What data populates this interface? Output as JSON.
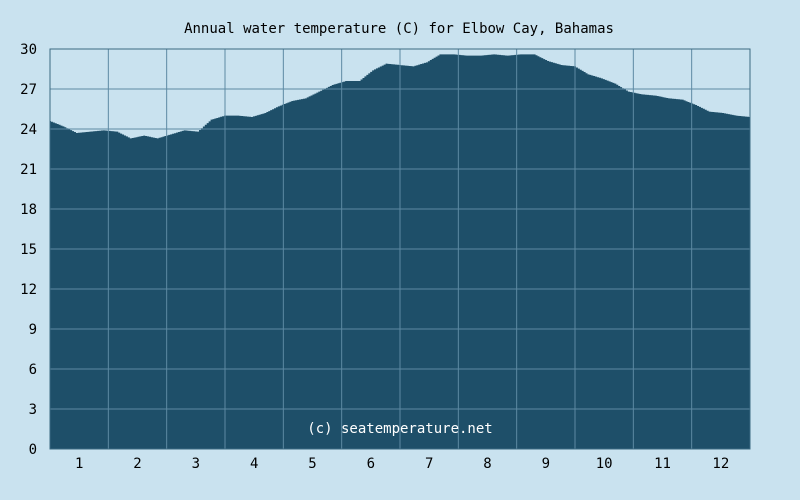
{
  "chart_data": {
    "type": "area",
    "title": "Annual water temperature (C) for Elbow Cay, Bahamas",
    "xlabel": "",
    "ylabel": "",
    "watermark": "(c) seatemperature.net",
    "x_ticks": [
      "1",
      "2",
      "3",
      "4",
      "5",
      "6",
      "7",
      "8",
      "9",
      "10",
      "11",
      "12"
    ],
    "y_ticks": [
      "0",
      "3",
      "6",
      "9",
      "12",
      "15",
      "18",
      "21",
      "24",
      "27",
      "30"
    ],
    "ylim": [
      0,
      30
    ],
    "xlim_days": [
      1,
      365
    ],
    "grid": true,
    "colors": {
      "background": "#c9e2ef",
      "area_fill": "#1e4f69",
      "grid": "#5d8aa3",
      "axis": "#3b6a82"
    },
    "series": [
      {
        "values_day": [
          1,
          8,
          15,
          22,
          29,
          36,
          43,
          50,
          57,
          64,
          71,
          78,
          85,
          92,
          99,
          106,
          113,
          120,
          127,
          134,
          141,
          148,
          155,
          162,
          169,
          176,
          183,
          190,
          197,
          204,
          211,
          218,
          225,
          232,
          239,
          246,
          253,
          260,
          267,
          274,
          281,
          288,
          295,
          302,
          309,
          316,
          323,
          330,
          337,
          344,
          351,
          358,
          365
        ],
        "values": [
          24.6,
          24.2,
          23.7,
          23.8,
          23.9,
          23.8,
          23.3,
          23.5,
          23.3,
          23.6,
          23.9,
          23.8,
          24.7,
          25.0,
          25.0,
          24.9,
          25.2,
          25.7,
          26.1,
          26.3,
          26.8,
          27.3,
          27.6,
          27.6,
          28.4,
          28.9,
          28.8,
          28.7,
          29.0,
          29.6,
          29.6,
          29.5,
          29.5,
          29.6,
          29.5,
          29.6,
          29.6,
          29.1,
          28.8,
          28.7,
          28.1,
          27.8,
          27.4,
          26.8,
          26.6,
          26.5,
          26.3,
          26.2,
          25.8,
          25.3,
          25.2,
          25.0,
          24.9
        ]
      }
    ]
  }
}
